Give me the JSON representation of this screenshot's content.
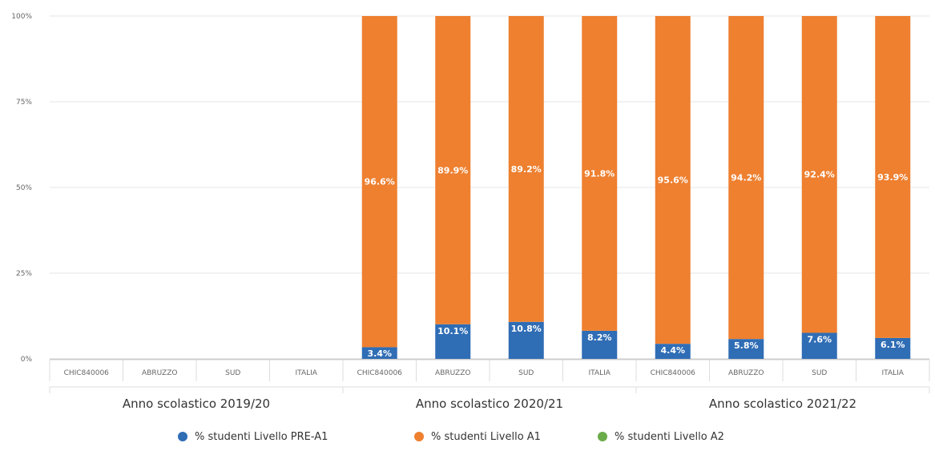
{
  "chart_data": {
    "type": "bar",
    "stacked": true,
    "stack_mode": "percent",
    "yaxis_ticks": [
      "0%",
      "25%",
      "50%",
      "75%",
      "100%"
    ],
    "ylim": [
      0,
      100
    ],
    "grid": true,
    "legend_position": "bottom",
    "groups": [
      {
        "label": "Anno scolastico 2019/20",
        "categories": [
          "CHIC840006",
          "ABRUZZO",
          "SUD",
          "ITALIA"
        ]
      },
      {
        "label": "Anno scolastico 2020/21",
        "categories": [
          "CHIC840006",
          "ABRUZZO",
          "SUD",
          "ITALIA"
        ]
      },
      {
        "label": "Anno scolastico 2021/22",
        "categories": [
          "CHIC840006",
          "ABRUZZO",
          "SUD",
          "ITALIA"
        ]
      }
    ],
    "series": [
      {
        "name": "% studenti Livello PRE-A1",
        "color": "#2f6db5",
        "values": [
          null,
          null,
          null,
          null,
          3.4,
          10.1,
          10.8,
          8.2,
          4.4,
          5.8,
          7.6,
          6.1
        ],
        "labels": [
          "",
          "",
          "",
          "",
          "3.4%",
          "10.1%",
          "10.8%",
          "8.2%",
          "4.4%",
          "5.8%",
          "7.6%",
          "6.1%"
        ]
      },
      {
        "name": "% studenti Livello A1",
        "color": "#ee8030",
        "values": [
          null,
          null,
          null,
          null,
          96.6,
          89.9,
          89.2,
          91.8,
          95.6,
          94.2,
          92.4,
          93.9
        ],
        "labels": [
          "",
          "",
          "",
          "",
          "96.6%",
          "89.9%",
          "89.2%",
          "91.8%",
          "95.6%",
          "94.2%",
          "92.4%",
          "93.9%"
        ]
      },
      {
        "name": "% studenti Livello A2",
        "color": "#6aab4a",
        "values": [
          null,
          null,
          null,
          null,
          0,
          0,
          0,
          0,
          0,
          0,
          0,
          0
        ],
        "labels": [
          "",
          "",
          "",
          "",
          "",
          "",
          "",
          "",
          "",
          "",
          "",
          ""
        ]
      }
    ]
  }
}
